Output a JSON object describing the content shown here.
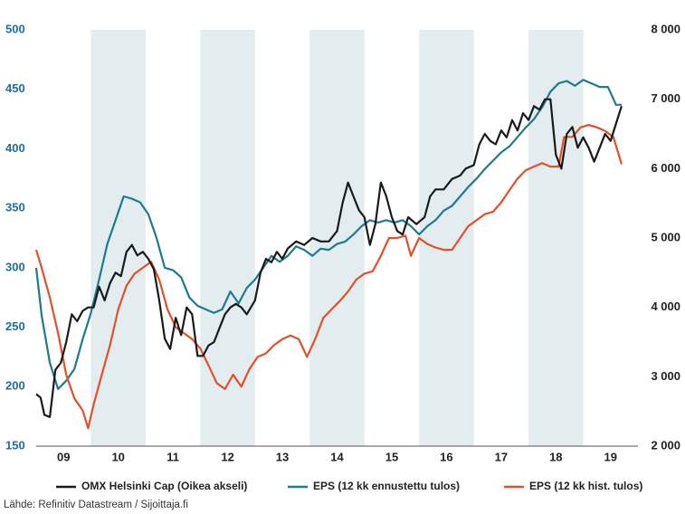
{
  "chart_data": {
    "type": "line",
    "xlim": [
      2009,
      2020
    ],
    "xticks": [
      {
        "value": 2009.5,
        "label": "09"
      },
      {
        "value": 2010.5,
        "label": "10"
      },
      {
        "value": 2011.5,
        "label": "11"
      },
      {
        "value": 2012.5,
        "label": "12"
      },
      {
        "value": 2013.5,
        "label": "13"
      },
      {
        "value": 2014.5,
        "label": "14"
      },
      {
        "value": 2015.5,
        "label": "15"
      },
      {
        "value": 2016.5,
        "label": "16"
      },
      {
        "value": 2017.5,
        "label": "17"
      },
      {
        "value": 2018.5,
        "label": "18"
      },
      {
        "value": 2019.5,
        "label": "19"
      }
    ],
    "shaded_periods": [
      [
        2010,
        2011
      ],
      [
        2012,
        2013
      ],
      [
        2014,
        2015
      ],
      [
        2016,
        2017
      ],
      [
        2018,
        2019
      ]
    ],
    "shade_color": "#e3ecef",
    "ylim": [
      150,
      500
    ],
    "yticks": [
      150,
      200,
      250,
      300,
      350,
      400,
      450,
      500
    ],
    "y2lim": [
      2000,
      8000
    ],
    "y2ticks": [
      {
        "value": 2000,
        "label": "2 000"
      },
      {
        "value": 3000,
        "label": "3 000"
      },
      {
        "value": 4000,
        "label": "4 000"
      },
      {
        "value": 5000,
        "label": "5 000"
      },
      {
        "value": 6000,
        "label": "6 000"
      },
      {
        "value": 7000,
        "label": "7 000"
      },
      {
        "value": 8000,
        "label": "8 000"
      }
    ],
    "source": "Lähde: Refinitiv Datastream / Sijoittaja.fi",
    "series": [
      {
        "name": "OMX Helsinki Cap (Oikea akseli)",
        "color": "#1a1a1a",
        "axis": "y2",
        "x": [
          2009.0,
          2009.08,
          2009.15,
          2009.25,
          2009.35,
          2009.45,
          2009.55,
          2009.65,
          2009.75,
          2009.85,
          2009.95,
          2010.05,
          2010.15,
          2010.25,
          2010.35,
          2010.45,
          2010.55,
          2010.65,
          2010.75,
          2010.85,
          2010.95,
          2011.05,
          2011.15,
          2011.25,
          2011.35,
          2011.45,
          2011.55,
          2011.65,
          2011.75,
          2011.85,
          2011.95,
          2012.05,
          2012.15,
          2012.25,
          2012.35,
          2012.45,
          2012.55,
          2012.65,
          2012.75,
          2012.85,
          2013.0,
          2013.1,
          2013.2,
          2013.3,
          2013.4,
          2013.5,
          2013.6,
          2013.75,
          2013.9,
          2014.05,
          2014.2,
          2014.35,
          2014.5,
          2014.6,
          2014.7,
          2014.8,
          2014.9,
          2015.0,
          2015.1,
          2015.2,
          2015.3,
          2015.4,
          2015.5,
          2015.6,
          2015.7,
          2015.8,
          2015.95,
          2016.1,
          2016.2,
          2016.3,
          2016.45,
          2016.6,
          2016.75,
          2016.85,
          2017.0,
          2017.1,
          2017.2,
          2017.3,
          2017.4,
          2017.5,
          2017.6,
          2017.7,
          2017.8,
          2017.9,
          2018.0,
          2018.1,
          2018.2,
          2018.3,
          2018.4,
          2018.5,
          2018.6,
          2018.7,
          2018.8,
          2018.9,
          2019.0,
          2019.1,
          2019.2,
          2019.3,
          2019.4,
          2019.5,
          2019.6,
          2019.7
        ],
        "values": [
          2750,
          2700,
          2450,
          2420,
          3100,
          3200,
          3500,
          3900,
          3800,
          3950,
          4000,
          4000,
          4300,
          4100,
          4350,
          4500,
          4450,
          4800,
          4900,
          4750,
          4800,
          4700,
          4550,
          4100,
          3550,
          3400,
          3850,
          3600,
          4000,
          3900,
          3300,
          3300,
          3450,
          3500,
          3700,
          3900,
          4000,
          4050,
          4000,
          3900,
          4100,
          4500,
          4700,
          4650,
          4800,
          4700,
          4850,
          4950,
          4900,
          5000,
          4950,
          4950,
          5100,
          5500,
          5800,
          5600,
          5400,
          5300,
          4900,
          5200,
          5800,
          5600,
          5300,
          5100,
          5050,
          5300,
          5200,
          5300,
          5600,
          5700,
          5700,
          5850,
          5900,
          6000,
          6050,
          6350,
          6500,
          6400,
          6350,
          6550,
          6450,
          6700,
          6550,
          6800,
          6700,
          6900,
          6850,
          7000,
          7000,
          6200,
          6000,
          6500,
          6600,
          6300,
          6450,
          6300,
          6100,
          6300,
          6500,
          6400,
          6650,
          6900
        ]
      },
      {
        "name": "EPS (12 kk ennustettu tulos)",
        "color": "#1e7a8c",
        "x": [
          2009.0,
          2009.1,
          2009.25,
          2009.4,
          2009.55,
          2009.7,
          2009.85,
          2010.0,
          2010.15,
          2010.3,
          2010.45,
          2010.6,
          2010.75,
          2010.9,
          2011.05,
          2011.2,
          2011.35,
          2011.5,
          2011.65,
          2011.8,
          2011.95,
          2012.1,
          2012.25,
          2012.4,
          2012.55,
          2012.7,
          2012.85,
          2013.0,
          2013.15,
          2013.3,
          2013.45,
          2013.6,
          2013.75,
          2013.9,
          2014.05,
          2014.2,
          2014.35,
          2014.5,
          2014.65,
          2014.8,
          2014.95,
          2015.1,
          2015.25,
          2015.4,
          2015.55,
          2015.7,
          2015.85,
          2016.0,
          2016.15,
          2016.3,
          2016.45,
          2016.6,
          2016.75,
          2016.9,
          2017.05,
          2017.2,
          2017.35,
          2017.5,
          2017.65,
          2017.8,
          2017.95,
          2018.1,
          2018.25,
          2018.4,
          2018.55,
          2018.7,
          2018.85,
          2019.0,
          2019.15,
          2019.3,
          2019.45,
          2019.6,
          2019.7
        ],
        "values": [
          300,
          260,
          220,
          198,
          205,
          215,
          240,
          262,
          290,
          320,
          340,
          360,
          358,
          355,
          345,
          325,
          300,
          298,
          292,
          275,
          268,
          265,
          262,
          265,
          280,
          270,
          283,
          290,
          300,
          310,
          305,
          310,
          318,
          315,
          310,
          316,
          315,
          320,
          322,
          328,
          335,
          340,
          338,
          340,
          338,
          340,
          335,
          328,
          335,
          340,
          348,
          352,
          360,
          368,
          375,
          383,
          390,
          397,
          402,
          410,
          418,
          425,
          435,
          448,
          455,
          457,
          453,
          458,
          455,
          452,
          452,
          437,
          437
        ]
      },
      {
        "name": "EPS (12 kk hist. tulos)",
        "color": "#e2502a",
        "x": [
          2009.0,
          2009.1,
          2009.25,
          2009.4,
          2009.55,
          2009.7,
          2009.85,
          2009.95,
          2010.05,
          2010.2,
          2010.35,
          2010.5,
          2010.65,
          2010.8,
          2010.95,
          2011.1,
          2011.25,
          2011.4,
          2011.55,
          2011.7,
          2011.85,
          2012.0,
          2012.15,
          2012.3,
          2012.45,
          2012.6,
          2012.75,
          2012.9,
          2013.05,
          2013.2,
          2013.35,
          2013.5,
          2013.65,
          2013.8,
          2013.95,
          2014.1,
          2014.25,
          2014.4,
          2014.55,
          2014.7,
          2014.85,
          2015.0,
          2015.15,
          2015.3,
          2015.45,
          2015.6,
          2015.75,
          2015.85,
          2016.0,
          2016.15,
          2016.3,
          2016.45,
          2016.6,
          2016.75,
          2016.9,
          2017.05,
          2017.2,
          2017.35,
          2017.5,
          2017.65,
          2017.8,
          2017.95,
          2018.1,
          2018.25,
          2018.4,
          2018.55,
          2018.65,
          2018.8,
          2018.95,
          2019.1,
          2019.25,
          2019.4,
          2019.55,
          2019.65,
          2019.7
        ],
        "values": [
          315,
          300,
          275,
          245,
          210,
          190,
          180,
          165,
          185,
          210,
          235,
          265,
          285,
          295,
          300,
          305,
          290,
          265,
          250,
          245,
          240,
          232,
          218,
          203,
          198,
          210,
          200,
          215,
          225,
          228,
          235,
          240,
          243,
          240,
          225,
          240,
          258,
          265,
          272,
          280,
          290,
          295,
          297,
          310,
          325,
          325,
          327,
          310,
          325,
          320,
          317,
          315,
          315,
          325,
          335,
          340,
          345,
          347,
          355,
          365,
          375,
          382,
          385,
          388,
          385,
          385,
          410,
          410,
          418,
          420,
          418,
          415,
          410,
          395,
          387
        ]
      }
    ]
  }
}
